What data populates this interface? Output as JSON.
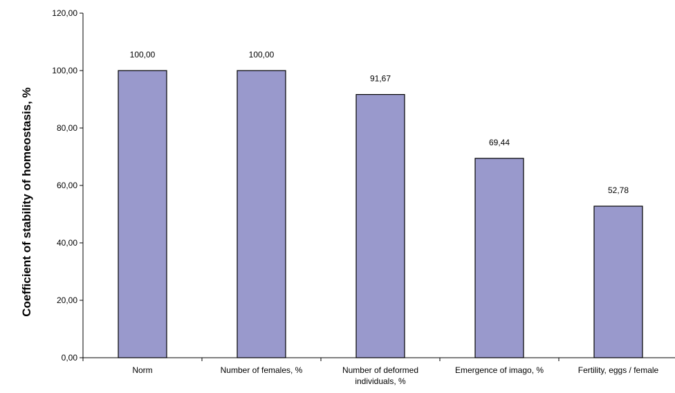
{
  "chart_data": {
    "type": "bar",
    "title": "",
    "xlabel": "",
    "ylabel": "Coefficient of stability of homeostasis, %",
    "ylim": [
      0,
      120
    ],
    "ytick_step": 20,
    "ytick_labels": [
      "0,00",
      "20,00",
      "40,00",
      "60,00",
      "80,00",
      "100,00",
      "120,00"
    ],
    "categories": [
      [
        "Norm"
      ],
      [
        "Number of females, %"
      ],
      [
        "Number of deformed",
        "individuals, %"
      ],
      [
        "Emergence of imago, %"
      ],
      [
        "Fertility, eggs / female"
      ]
    ],
    "values": [
      100.0,
      100.0,
      91.67,
      69.44,
      52.78
    ],
    "value_labels": [
      "100,00",
      "100,00",
      "91,67",
      "69,44",
      "52,78"
    ],
    "bar_color": "#9999cc",
    "bar_edge_color": "#000000",
    "grid": false,
    "legend": "none"
  }
}
